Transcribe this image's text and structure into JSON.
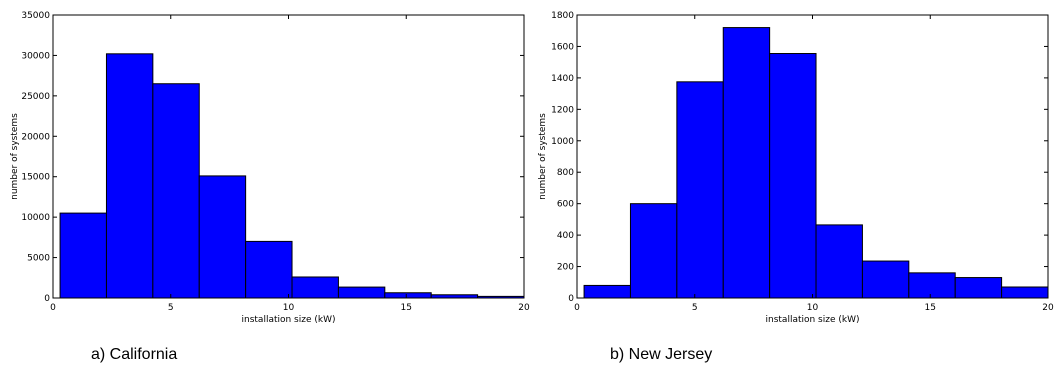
{
  "chart_data": [
    {
      "type": "bar",
      "caption": "a) California",
      "xlabel": "installation size (kW)",
      "ylabel": "number of systems",
      "xlim": [
        0,
        20
      ],
      "ylim": [
        0,
        35000
      ],
      "xticks": [
        0,
        5,
        10,
        15,
        20
      ],
      "yticks": [
        0,
        5000,
        10000,
        15000,
        20000,
        25000,
        30000,
        35000
      ],
      "bin_edges": [
        0.3,
        2.27,
        4.24,
        6.21,
        8.18,
        10.15,
        12.12,
        14.09,
        16.06,
        18.03,
        20.0
      ],
      "values": [
        10500,
        30200,
        26500,
        15100,
        7000,
        2600,
        1350,
        650,
        400,
        200
      ],
      "bar_color": "#0000ff",
      "grid": false
    },
    {
      "type": "bar",
      "caption": "b) New Jersey",
      "xlabel": "installation size (kW)",
      "ylabel": "number of systems",
      "xlim": [
        0,
        20
      ],
      "ylim": [
        0,
        1800
      ],
      "xticks": [
        0,
        5,
        10,
        15,
        20
      ],
      "yticks": [
        0,
        200,
        400,
        600,
        800,
        1000,
        1200,
        1400,
        1600,
        1800
      ],
      "bin_edges": [
        0.3,
        2.27,
        4.24,
        6.21,
        8.18,
        10.15,
        12.12,
        14.09,
        16.06,
        18.03,
        20.0
      ],
      "values": [
        80,
        600,
        1375,
        1720,
        1555,
        465,
        235,
        160,
        130,
        70
      ],
      "bar_color": "#0000ff",
      "grid": false
    }
  ]
}
